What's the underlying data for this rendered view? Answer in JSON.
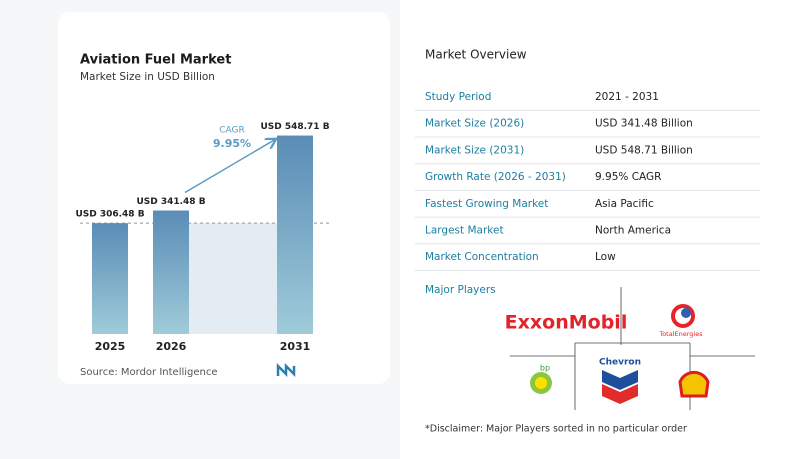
{
  "chart_data": {
    "type": "bar",
    "title": "Aviation Fuel Market",
    "subtitle": "Market Size in USD Billion",
    "categories": [
      "2025",
      "2026",
      "2031"
    ],
    "values": [
      306.48,
      341.48,
      548.71
    ],
    "value_labels": [
      "USD 306.48 B",
      "USD 341.48 B",
      "USD 548.71 B"
    ],
    "color": "#5a8cb6",
    "ylim": [
      0,
      600
    ],
    "annotations": [
      "CAGR",
      "9.95%"
    ],
    "source": "Source:  Mordor Intelligence"
  },
  "overview": {
    "title": "Market Overview",
    "rows": [
      [
        "Study Period",
        "2021 - 2031"
      ],
      [
        "Market Size (2026)",
        "USD 341.48 Billion"
      ],
      [
        "Market Size (2031)",
        "USD 548.71 Billion"
      ],
      [
        "Growth Rate (2026 - 2031)",
        "9.95% CAGR"
      ],
      [
        "Fastest Growing Market",
        "Asia Pacific"
      ],
      [
        "Largest Market",
        "North America"
      ],
      [
        "Market Concentration",
        "Low"
      ]
    ]
  },
  "players": {
    "title": "Major Players",
    "logos": [
      "ExxonMobil",
      "TotalEnergies",
      "Chevron",
      "bp"
    ]
  },
  "disclaimer": "*Disclaimer: Major Players sorted in no particular order"
}
